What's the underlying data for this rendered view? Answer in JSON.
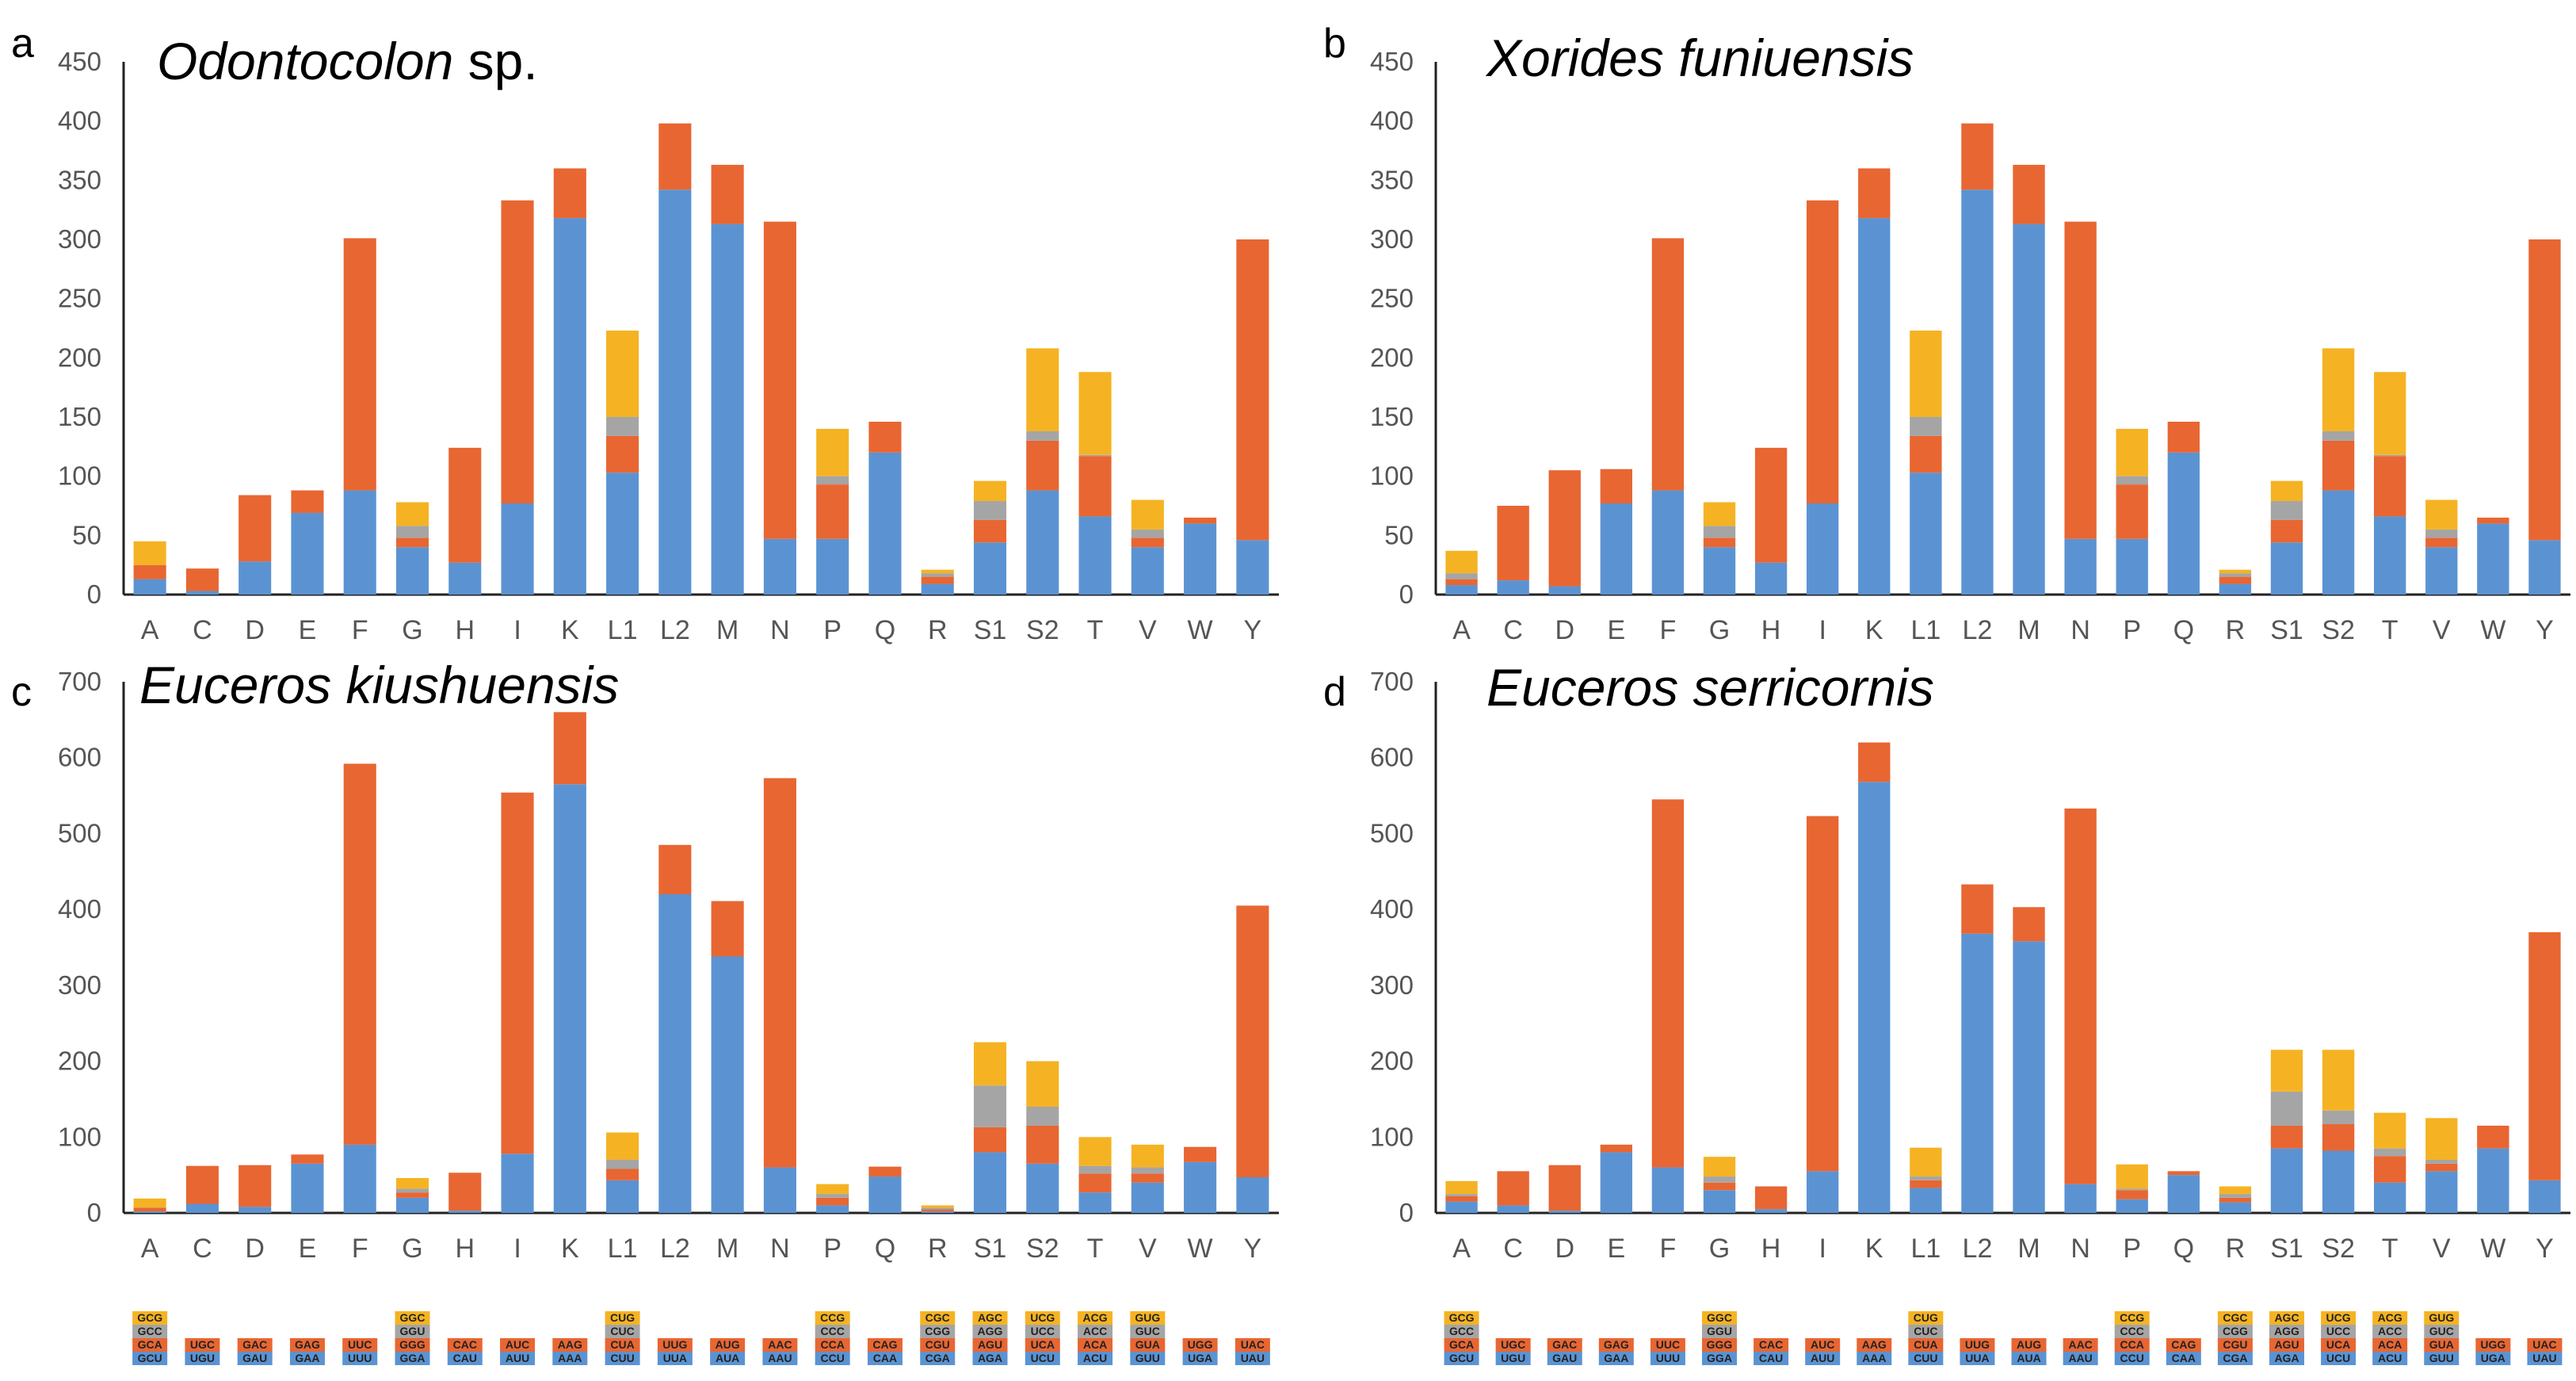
{
  "colors": {
    "stack1": "#5b93d2",
    "stack2": "#e86632",
    "stack3": "#a5a5a5",
    "stack4": "#f5b323",
    "axis": "#222222"
  },
  "codon_legend": [
    {
      "aa": "A",
      "codons": [
        "GCU",
        "GCA",
        "GCC",
        "GCG"
      ]
    },
    {
      "aa": "C",
      "codons": [
        "UGU",
        "UGC"
      ]
    },
    {
      "aa": "D",
      "codons": [
        "GAU",
        "GAC"
      ]
    },
    {
      "aa": "E",
      "codons": [
        "GAA",
        "GAG"
      ]
    },
    {
      "aa": "F",
      "codons": [
        "UUU",
        "UUC"
      ]
    },
    {
      "aa": "G",
      "codons": [
        "GGA",
        "GGG",
        "GGU",
        "GGC"
      ]
    },
    {
      "aa": "H",
      "codons": [
        "CAU",
        "CAC"
      ]
    },
    {
      "aa": "I",
      "codons": [
        "AUU",
        "AUC"
      ]
    },
    {
      "aa": "K",
      "codons": [
        "AAA",
        "AAG"
      ]
    },
    {
      "aa": "L1",
      "codons": [
        "CUU",
        "CUA",
        "CUC",
        "CUG"
      ]
    },
    {
      "aa": "L2",
      "codons": [
        "UUA",
        "UUG"
      ]
    },
    {
      "aa": "M",
      "codons": [
        "AUA",
        "AUG"
      ]
    },
    {
      "aa": "N",
      "codons": [
        "AAU",
        "AAC"
      ]
    },
    {
      "aa": "P",
      "codons": [
        "CCU",
        "CCA",
        "CCC",
        "CCG"
      ]
    },
    {
      "aa": "Q",
      "codons": [
        "CAA",
        "CAG"
      ]
    },
    {
      "aa": "R",
      "codons": [
        "CGA",
        "CGU",
        "CGG",
        "CGC"
      ]
    },
    {
      "aa": "S1",
      "codons": [
        "AGA",
        "AGU",
        "AGG",
        "AGC"
      ]
    },
    {
      "aa": "S2",
      "codons": [
        "UCU",
        "UCA",
        "UCC",
        "UCG"
      ]
    },
    {
      "aa": "T",
      "codons": [
        "ACU",
        "ACA",
        "ACC",
        "ACG"
      ]
    },
    {
      "aa": "V",
      "codons": [
        "GUU",
        "GUA",
        "GUC",
        "GUG"
      ]
    },
    {
      "aa": "W",
      "codons": [
        "UGA",
        "UGG"
      ]
    },
    {
      "aa": "Y",
      "codons": [
        "UAU",
        "UAC"
      ]
    }
  ],
  "chart_data": [
    {
      "type": "bar",
      "stacked": true,
      "letter": "a",
      "title": "Odontocolon",
      "title_suffix": " sp.",
      "ylim": [
        0,
        450
      ],
      "yticks": [
        "0",
        "50",
        "100",
        "150",
        "200",
        "250",
        "300",
        "350",
        "400",
        "450"
      ],
      "categories": [
        "A",
        "C",
        "D",
        "E",
        "F",
        "G",
        "H",
        "I",
        "K",
        "L1",
        "L2",
        "M",
        "N",
        "P",
        "Q",
        "R",
        "S1",
        "S2",
        "T",
        "V",
        "W",
        "Y"
      ],
      "stacks": [
        [
          13,
          12,
          0,
          20
        ],
        [
          3,
          19
        ],
        [
          28,
          56
        ],
        [
          69,
          19
        ],
        [
          88,
          213
        ],
        [
          40,
          8,
          10,
          20
        ],
        [
          27,
          97
        ],
        [
          77,
          256
        ],
        [
          318,
          42
        ],
        [
          103,
          31,
          16,
          73
        ],
        [
          342,
          56
        ],
        [
          313,
          50
        ],
        [
          47,
          268
        ],
        [
          47,
          46,
          7,
          40
        ],
        [
          120,
          26
        ],
        [
          9,
          6,
          3,
          3
        ],
        [
          44,
          19,
          16,
          17
        ],
        [
          88,
          42,
          8,
          70
        ],
        [
          66,
          51,
          1,
          70
        ],
        [
          40,
          8,
          7,
          25
        ],
        [
          60,
          5
        ],
        [
          46,
          254
        ]
      ]
    },
    {
      "type": "bar",
      "stacked": true,
      "letter": "b",
      "title": "Xorides funiuensis",
      "title_suffix": "",
      "ylim": [
        0,
        450
      ],
      "yticks": [
        "0",
        "50",
        "100",
        "150",
        "200",
        "250",
        "300",
        "350",
        "400",
        "450"
      ],
      "categories": [
        "A",
        "C",
        "D",
        "E",
        "F",
        "G",
        "H",
        "I",
        "K",
        "L1",
        "L2",
        "M",
        "N",
        "P",
        "Q",
        "R",
        "S1",
        "S2",
        "T",
        "V",
        "W",
        "Y"
      ],
      "stacks": [
        [
          8,
          5,
          5,
          19
        ],
        [
          12,
          63
        ],
        [
          7,
          98
        ],
        [
          77,
          29
        ],
        [
          88,
          213
        ],
        [
          40,
          8,
          10,
          20
        ],
        [
          27,
          97
        ],
        [
          77,
          256
        ],
        [
          318,
          42
        ],
        [
          103,
          31,
          16,
          73
        ],
        [
          342,
          56
        ],
        [
          313,
          50
        ],
        [
          47,
          268
        ],
        [
          47,
          46,
          7,
          40
        ],
        [
          120,
          26
        ],
        [
          9,
          6,
          3,
          3
        ],
        [
          44,
          19,
          16,
          17
        ],
        [
          88,
          42,
          8,
          70
        ],
        [
          66,
          51,
          1,
          70
        ],
        [
          40,
          8,
          7,
          25
        ],
        [
          60,
          5
        ],
        [
          46,
          254
        ]
      ]
    },
    {
      "type": "bar",
      "stacked": true,
      "letter": "c",
      "title": "Euceros kiushuensis",
      "title_suffix": "",
      "ylim": [
        0,
        700
      ],
      "yticks": [
        "0",
        "100",
        "200",
        "300",
        "400",
        "500",
        "600",
        "700"
      ],
      "categories": [
        "A",
        "C",
        "D",
        "E",
        "F",
        "G",
        "H",
        "I",
        "K",
        "L1",
        "L2",
        "M",
        "N",
        "P",
        "Q",
        "R",
        "S1",
        "S2",
        "T",
        "V",
        "W",
        "Y"
      ],
      "stacks": [
        [
          2,
          5,
          0,
          12
        ],
        [
          12,
          50
        ],
        [
          8,
          55
        ],
        [
          65,
          12
        ],
        [
          90,
          502
        ],
        [
          20,
          7,
          5,
          14
        ],
        [
          3,
          50
        ],
        [
          78,
          476
        ],
        [
          565,
          95
        ],
        [
          43,
          15,
          12,
          36
        ],
        [
          420,
          65
        ],
        [
          338,
          73
        ],
        [
          60,
          513
        ],
        [
          10,
          10,
          5,
          13
        ],
        [
          48,
          13
        ],
        [
          2,
          3,
          2,
          3
        ],
        [
          80,
          33,
          55,
          57
        ],
        [
          65,
          50,
          25,
          60
        ],
        [
          27,
          25,
          10,
          38
        ],
        [
          40,
          12,
          8,
          30
        ],
        [
          67,
          20
        ],
        [
          47,
          358
        ]
      ]
    },
    {
      "type": "bar",
      "stacked": true,
      "letter": "d",
      "title": "Euceros serricornis",
      "title_suffix": "",
      "ylim": [
        0,
        700
      ],
      "yticks": [
        "0",
        "100",
        "200",
        "300",
        "400",
        "500",
        "600",
        "700"
      ],
      "categories": [
        "A",
        "C",
        "D",
        "E",
        "F",
        "G",
        "H",
        "I",
        "K",
        "L1",
        "L2",
        "M",
        "N",
        "P",
        "Q",
        "R",
        "S1",
        "S2",
        "T",
        "V",
        "W",
        "Y"
      ],
      "stacks": [
        [
          15,
          7,
          3,
          17
        ],
        [
          10,
          45
        ],
        [
          3,
          60
        ],
        [
          80,
          10
        ],
        [
          60,
          485
        ],
        [
          30,
          10,
          8,
          26
        ],
        [
          5,
          30
        ],
        [
          55,
          468
        ],
        [
          568,
          52
        ],
        [
          33,
          10,
          5,
          38
        ],
        [
          368,
          65
        ],
        [
          358,
          45
        ],
        [
          38,
          495
        ],
        [
          18,
          12,
          2,
          32
        ],
        [
          50,
          5
        ],
        [
          14,
          6,
          5,
          10
        ],
        [
          85,
          30,
          45,
          55
        ],
        [
          82,
          35,
          18,
          80
        ],
        [
          40,
          35,
          10,
          47
        ],
        [
          55,
          10,
          5,
          55
        ],
        [
          85,
          30
        ],
        [
          43,
          327
        ]
      ]
    }
  ]
}
